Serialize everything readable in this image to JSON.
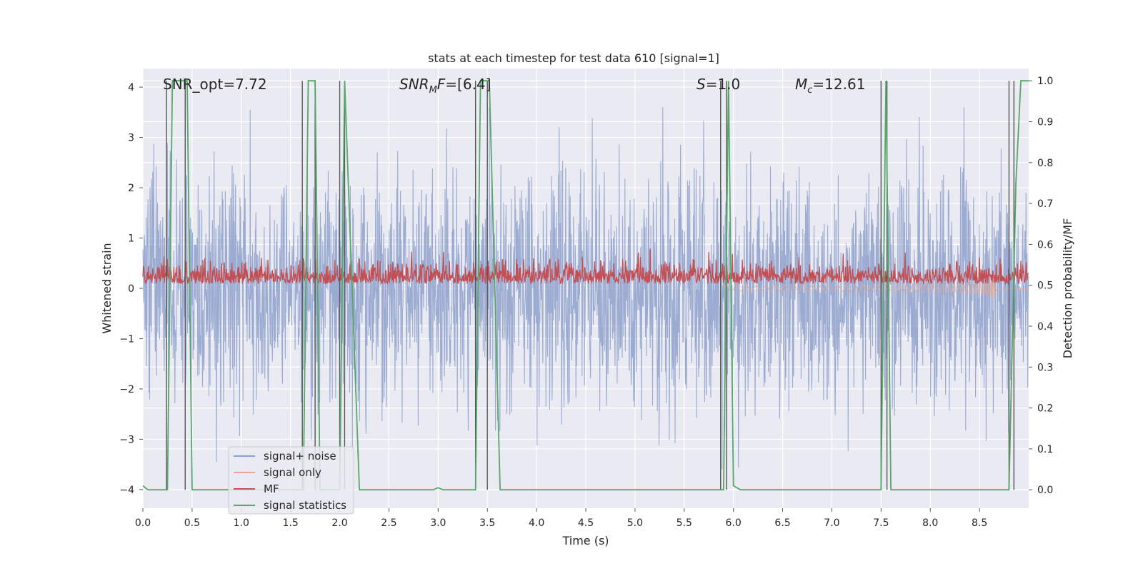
{
  "chart_data": {
    "type": "line",
    "title": "stats at each timestep for test data 610 [signal=1]",
    "xlabel": "Time (s)",
    "ylabel_left": "Whitened strain",
    "ylabel_right": "Detection probability/MF",
    "xlim": [
      0.0,
      9.0
    ],
    "ylim_left": [
      -4.37,
      4.37
    ],
    "ylim_right": [
      -0.045,
      1.03
    ],
    "xticks": [
      0.0,
      0.5,
      1.0,
      1.5,
      2.0,
      2.5,
      3.0,
      3.5,
      4.0,
      4.5,
      5.0,
      5.5,
      6.0,
      6.5,
      7.0,
      7.5,
      8.0,
      8.5
    ],
    "xtick_labels": [
      "0.0",
      "0.5",
      "1.0",
      "1.5",
      "2.0",
      "2.5",
      "3.0",
      "3.5",
      "4.0",
      "4.5",
      "5.0",
      "5.5",
      "6.0",
      "6.5",
      "7.0",
      "7.5",
      "8.0",
      "8.5"
    ],
    "yticks_left": [
      4,
      3,
      2,
      1,
      0,
      -1,
      -2,
      -3,
      -4
    ],
    "ytick_labels_left": [
      "4",
      "3",
      "2",
      "1",
      "0",
      "−1",
      "−2",
      "−3",
      "−4"
    ],
    "yticks_right": [
      1.0,
      0.9,
      0.8,
      0.7,
      0.6,
      0.5,
      0.4,
      0.3,
      0.2,
      0.1,
      0.0
    ],
    "ytick_labels_right": [
      "1.0",
      "0.9",
      "0.8",
      "0.7",
      "0.6",
      "0.5",
      "0.4",
      "0.3",
      "0.2",
      "0.1",
      "0.0"
    ],
    "grid": true,
    "annotations": [
      {
        "label": "SNR_opt",
        "value": "7.72"
      },
      {
        "label": "SNR_MF",
        "value": "[6.4]"
      },
      {
        "label": "S",
        "value": "1.0"
      },
      {
        "label": "M_c",
        "value": "12.61"
      }
    ],
    "legend": {
      "location": "lower-left",
      "entries": [
        {
          "label": "signal+ noise",
          "color": "#8da0cb"
        },
        {
          "label": "signal only",
          "color": "#e9a88e"
        },
        {
          "label": "MF",
          "color": "#c44e52"
        },
        {
          "label": "signal statistics",
          "color": "#55a868"
        }
      ]
    },
    "series": [
      {
        "name": "signal+ noise",
        "axis": "left",
        "kind": "noise",
        "color": "#8da0cb",
        "spread": [
          -3.6,
          3.6
        ]
      },
      {
        "name": "signal only",
        "axis": "left",
        "kind": "chirp",
        "color": "#e9a88e",
        "t_start": 5.9,
        "t_merge": 8.66,
        "peak": [
          -1.7,
          1.15
        ]
      },
      {
        "name": "MF",
        "axis": "right",
        "kind": "noise",
        "color": "#c44e52",
        "range": [
          0.5,
          0.6
        ]
      },
      {
        "name": "signal statistics",
        "axis": "right",
        "kind": "line",
        "color": "#55a868",
        "x": [
          0.0,
          0.05,
          0.24,
          0.25,
          0.3,
          0.4,
          0.45,
          0.5,
          1.6,
          1.63,
          1.68,
          1.75,
          1.8,
          2.0,
          2.05,
          2.2,
          2.95,
          3.0,
          3.05,
          3.38,
          3.43,
          3.52,
          3.63,
          5.9,
          5.95,
          6.0,
          6.07,
          7.5,
          7.55,
          7.6,
          8.8,
          8.87,
          8.92,
          9.0
        ],
        "y": [
          0.01,
          0.0,
          0.0,
          0.0,
          1.0,
          1.0,
          1.0,
          0.0,
          0.0,
          0.0,
          1.0,
          1.0,
          0.0,
          0.0,
          1.0,
          0.0,
          0.0,
          0.005,
          0.0,
          0.0,
          1.0,
          1.0,
          0.0,
          0.0,
          1.0,
          0.01,
          0.0,
          0.0,
          1.0,
          0.0,
          0.0,
          0.75,
          1.0,
          1.0
        ]
      },
      {
        "name": "detections",
        "axis": "right",
        "kind": "vlines",
        "color": "#555555",
        "x": [
          0.24,
          0.43,
          1.62,
          1.75,
          2.0,
          2.05,
          3.38,
          3.5,
          5.87,
          5.93,
          7.5,
          7.56,
          8.8,
          8.85
        ]
      }
    ]
  },
  "legend_labels": {
    "a": "signal+ noise",
    "b": "signal only",
    "c": "MF",
    "d": "signal statistics"
  },
  "texts": {
    "title": "stats at each timestep for test data 610 [signal=1]",
    "xlabel": "Time (s)",
    "ylabel_left": "Whitened strain",
    "ylabel_right": "Detection probability/MF",
    "snr_opt": "SNR_opt=7.72",
    "snr_mf_value": "=[6.4]",
    "s_value": "=1.0",
    "mc_value": "=12.61"
  }
}
